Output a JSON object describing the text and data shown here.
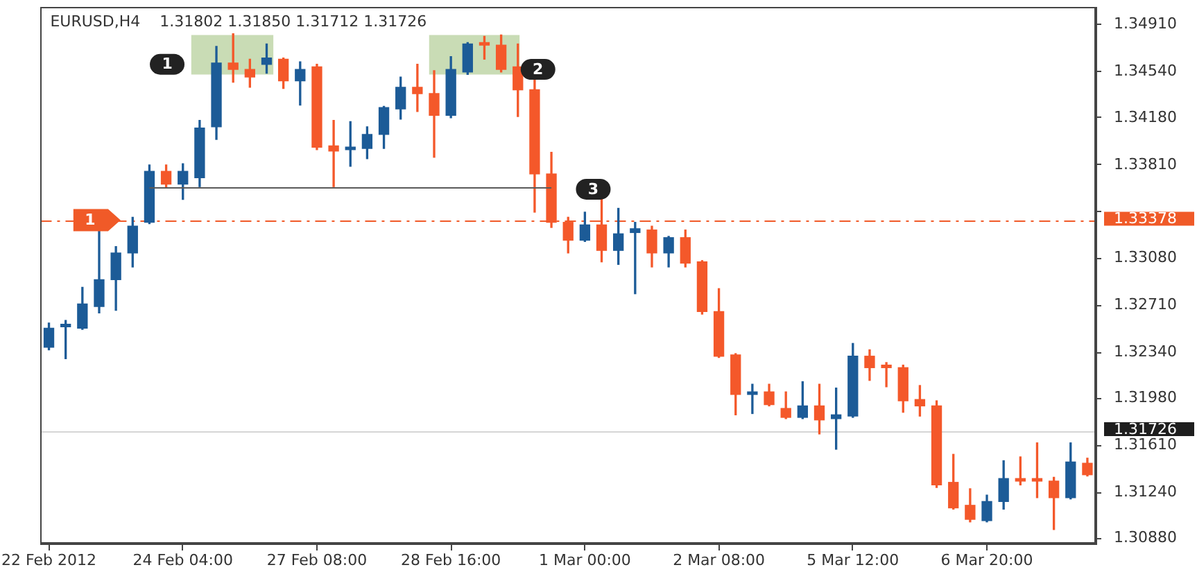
{
  "chart_data": {
    "type": "candlestick",
    "title": "EURUSD,H4",
    "subtitle": "1.31802 1.31850 1.31712 1.31726",
    "categories": [
      "22 Feb 2012",
      null,
      null,
      null,
      null,
      null,
      null,
      null,
      "24 Feb 04:00",
      null,
      null,
      null,
      null,
      null,
      null,
      null,
      "27 Feb 08:00",
      null,
      null,
      null,
      null,
      null,
      null,
      null,
      "28 Feb 16:00",
      null,
      null,
      null,
      null,
      null,
      null,
      null,
      "1 Mar 00:00",
      null,
      null,
      null,
      null,
      null,
      null,
      null,
      "2 Mar 08:00",
      null,
      null,
      null,
      null,
      null,
      null,
      null,
      "5 Mar 12:00",
      null,
      null,
      null,
      null,
      null,
      null,
      null,
      "6 Mar 20:00",
      null,
      null,
      null,
      null,
      null,
      null
    ],
    "ohlc": [
      [
        1.3238,
        1.3257,
        1.3236,
        1.3253
      ],
      [
        1.3254,
        1.3259,
        1.3229,
        1.3256
      ],
      [
        1.3253,
        1.3285,
        1.3252,
        1.3272
      ],
      [
        1.327,
        1.333,
        1.3265,
        1.3291
      ],
      [
        1.3291,
        1.3317,
        1.3267,
        1.3312
      ],
      [
        1.3312,
        1.334,
        1.3301,
        1.3333
      ],
      [
        1.3336,
        1.3381,
        1.3335,
        1.3376
      ],
      [
        1.3376,
        1.3381,
        1.3364,
        1.3366
      ],
      [
        1.3366,
        1.3382,
        1.3354,
        1.3376
      ],
      [
        1.3371,
        1.3416,
        1.3364,
        1.341
      ],
      [
        1.3411,
        1.3474,
        1.3401,
        1.3461
      ],
      [
        1.3461,
        1.3484,
        1.3446,
        1.3456
      ],
      [
        1.3456,
        1.3464,
        1.3442,
        1.345
      ],
      [
        1.346,
        1.3476,
        1.3453,
        1.3465
      ],
      [
        1.3464,
        1.3465,
        1.3441,
        1.3447
      ],
      [
        1.3447,
        1.3462,
        1.3428,
        1.3456
      ],
      [
        1.3458,
        1.346,
        1.3393,
        1.3395
      ],
      [
        1.3396,
        1.3416,
        1.3364,
        1.3392
      ],
      [
        1.3393,
        1.3415,
        1.338,
        1.3395
      ],
      [
        1.3394,
        1.3411,
        1.3386,
        1.3405
      ],
      [
        1.3405,
        1.3427,
        1.3394,
        1.3426
      ],
      [
        1.3425,
        1.345,
        1.3417,
        1.3442
      ],
      [
        1.3442,
        1.346,
        1.3423,
        1.3437
      ],
      [
        1.3437,
        1.3455,
        1.3387,
        1.342
      ],
      [
        1.342,
        1.3466,
        1.3418,
        1.3456
      ],
      [
        1.3454,
        1.3477,
        1.3452,
        1.3476
      ],
      [
        1.3477,
        1.3482,
        1.3464,
        1.3475
      ],
      [
        1.3475,
        1.3483,
        1.3454,
        1.3456
      ],
      [
        1.3458,
        1.3476,
        1.3419,
        1.344
      ],
      [
        1.344,
        1.3448,
        1.3344,
        1.3374
      ],
      [
        1.3374,
        1.3391,
        1.3332,
        1.3336
      ],
      [
        1.3336,
        1.334,
        1.3312,
        1.3322
      ],
      [
        1.3322,
        1.3344,
        1.3321,
        1.3334
      ],
      [
        1.3334,
        1.3355,
        1.3305,
        1.3314
      ],
      [
        1.3314,
        1.3347,
        1.3303,
        1.3327
      ],
      [
        1.3328,
        1.3336,
        1.328,
        1.3331
      ],
      [
        1.333,
        1.3333,
        1.3301,
        1.3312
      ],
      [
        1.3312,
        1.3325,
        1.3301,
        1.3324
      ],
      [
        1.3324,
        1.333,
        1.3301,
        1.3304
      ],
      [
        1.3305,
        1.3306,
        1.3264,
        1.3266
      ],
      [
        1.3266,
        1.3284,
        1.323,
        1.3231
      ],
      [
        1.3232,
        1.3233,
        1.3185,
        1.3201
      ],
      [
        1.3201,
        1.3209,
        1.3186,
        1.3203
      ],
      [
        1.3203,
        1.3209,
        1.3192,
        1.3193
      ],
      [
        1.319,
        1.3203,
        1.3182,
        1.3183
      ],
      [
        1.3183,
        1.3211,
        1.3182,
        1.3192
      ],
      [
        1.3192,
        1.3209,
        1.317,
        1.3181
      ],
      [
        1.3182,
        1.3206,
        1.3158,
        1.3185
      ],
      [
        1.3184,
        1.3241,
        1.3183,
        1.3231
      ],
      [
        1.3231,
        1.3236,
        1.3212,
        1.3222
      ],
      [
        1.3224,
        1.3226,
        1.3207,
        1.3222
      ],
      [
        1.3222,
        1.3224,
        1.3187,
        1.3196
      ],
      [
        1.3197,
        1.3208,
        1.3184,
        1.3192
      ],
      [
        1.3192,
        1.3196,
        1.3128,
        1.313
      ],
      [
        1.3132,
        1.3154,
        1.3111,
        1.3112
      ],
      [
        1.3114,
        1.3127,
        1.3101,
        1.3103
      ],
      [
        1.3102,
        1.3122,
        1.3101,
        1.3117
      ],
      [
        1.3117,
        1.3149,
        1.3111,
        1.3135
      ],
      [
        1.3135,
        1.3152,
        1.313,
        1.3133
      ],
      [
        1.3135,
        1.3163,
        1.312,
        1.3133
      ],
      [
        1.3133,
        1.3136,
        1.3095,
        1.312
      ],
      [
        1.312,
        1.3163,
        1.3119,
        1.3148
      ],
      [
        1.3147,
        1.3151,
        1.3137,
        1.3138
      ]
    ],
    "colors": [
      "#1c5b97",
      "#1c5b97",
      "#1c5b97",
      "#1c5b97",
      "#1c5b97",
      "#1c5b97",
      "#1c5b97",
      "#f4582a",
      "#1c5b97",
      "#1c5b97",
      "#1c5b97",
      "#f4582a",
      "#f4582a",
      "#1c5b97",
      "#f4582a",
      "#1c5b97",
      "#f4582a",
      "#f4582a",
      "#1c5b97",
      "#1c5b97",
      "#1c5b97",
      "#1c5b97",
      "#f4582a",
      "#f4582a",
      "#1c5b97",
      "#1c5b97",
      "#f4582a",
      "#f4582a",
      "#f4582a",
      "#f4582a",
      "#f4582a",
      "#f4582a",
      "#1c5b97",
      "#f4582a",
      "#1c5b97",
      "#1c5b97",
      "#f4582a",
      "#1c5b97",
      "#f4582a",
      "#f4582a",
      "#f4582a",
      "#f4582a",
      "#1c5b97",
      "#f4582a",
      "#f4582a",
      "#1c5b97",
      "#f4582a",
      "#1c5b97",
      "#1c5b97",
      "#f4582a",
      "#f4582a",
      "#f4582a",
      "#f4582a",
      "#f4582a",
      "#f4582a",
      "#f4582a",
      "#1c5b97",
      "#1c5b97",
      "#f4582a",
      "#f4582a",
      "#f4582a",
      "#1c5b97",
      "#f4582a"
    ],
    "series": [
      {
        "type": "line",
        "color": "#5a5a5a",
        "values": [
          null,
          null,
          null,
          null,
          null,
          null,
          1.3363,
          1.3363,
          1.3363,
          1.3363,
          1.3363,
          1.3363,
          1.3363,
          1.3363,
          1.3363,
          1.3363,
          1.3363,
          1.3363,
          1.3363,
          1.3363,
          1.3363,
          1.3363,
          1.3363,
          1.3363,
          1.3363,
          1.3363,
          1.3363,
          1.3363,
          1.3363,
          1.3363,
          1.3363,
          null,
          null,
          null,
          null,
          null,
          null,
          null,
          null,
          null,
          null,
          null,
          null,
          null,
          null,
          null,
          null,
          null,
          null,
          null,
          null,
          null,
          null,
          null,
          null,
          null,
          null,
          null,
          null,
          null,
          null,
          null,
          null
        ]
      }
    ],
    "ylim": [
      1.3084,
      1.3505
    ],
    "yticks": [
      {
        "value": 1.3491,
        "label": "1.34910"
      },
      {
        "value": 1.3454,
        "label": "1.34540"
      },
      {
        "value": 1.3418,
        "label": "1.34180"
      },
      {
        "value": 1.3381,
        "label": "1.33810"
      },
      {
        "value": 1.3344,
        "label": null
      },
      {
        "value": 1.3308,
        "label": "1.33080"
      },
      {
        "value": 1.3271,
        "label": "1.32710"
      },
      {
        "value": 1.3234,
        "label": "1.32340"
      },
      {
        "value": 1.3198,
        "label": "1.31980"
      },
      {
        "value": 1.3161,
        "label": "1.31610"
      },
      {
        "value": 1.3124,
        "label": "1.31240"
      },
      {
        "value": 1.3088,
        "label": "1.30880"
      }
    ],
    "ref_lines": [
      {
        "axis": "y",
        "value": 1.33378,
        "label": "1.33378",
        "color": "#f05a28",
        "line_style": "dashed"
      },
      {
        "axis": "y",
        "value": 1.31726,
        "label": "1.31726",
        "color": "#d6d6d6"
      }
    ],
    "bands": [
      {
        "axis": "y",
        "from": 1.3452,
        "to": 1.3483,
        "color": "#c9dcb5"
      },
      {
        "axis": "y",
        "from": 1.3452,
        "to": 1.3483,
        "color": "#c9dcb5"
      }
    ],
    "annotations": [
      {
        "text": "1",
        "y": 1.346
      },
      {
        "text": "2",
        "y": 1.3456
      },
      {
        "text": "3",
        "y": 1.3362
      },
      {
        "text": "1",
        "y": 1.33378
      }
    ]
  }
}
